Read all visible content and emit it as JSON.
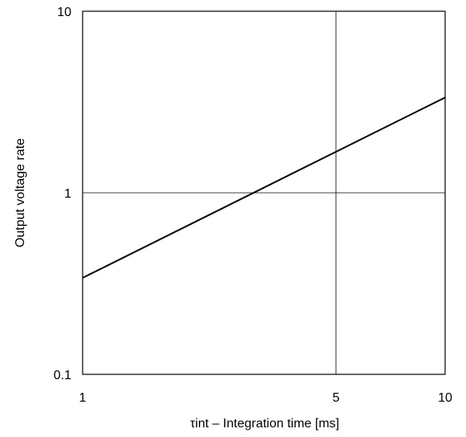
{
  "chart_data": {
    "type": "line",
    "title": "",
    "xlabel": "τint – Integration time [ms]",
    "ylabel": "Output voltage rate",
    "x_scale": "log",
    "y_scale": "log",
    "xlim": [
      1,
      10
    ],
    "ylim": [
      0.1,
      10
    ],
    "x_ticks": [
      {
        "value": 1,
        "label": "1"
      },
      {
        "value": 5,
        "label": "5"
      },
      {
        "value": 10,
        "label": "10"
      }
    ],
    "y_ticks": [
      {
        "value": 0.1,
        "label": "0.1"
      },
      {
        "value": 1,
        "label": "1"
      },
      {
        "value": 10,
        "label": "10"
      }
    ],
    "grid": {
      "x": [
        5
      ],
      "y": [
        1
      ]
    },
    "series": [
      {
        "x": [
          1,
          10
        ],
        "y": [
          0.34,
          3.35
        ],
        "color": "#000000"
      }
    ]
  }
}
